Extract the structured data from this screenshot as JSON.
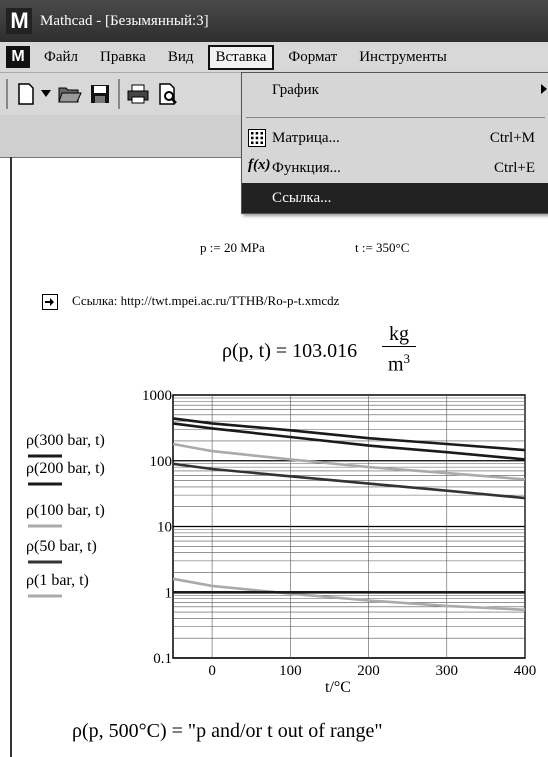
{
  "window": {
    "title": "Mathcad - [Безымянный:3]"
  },
  "menubar": {
    "items": [
      "Файл",
      "Правка",
      "Вид",
      "Вставка",
      "Формат",
      "Инструменты"
    ]
  },
  "icons": [
    "mathcad-logo-icon",
    "new-document-icon",
    "dropdown-arrow-icon",
    "open-folder-icon",
    "save-icon",
    "print-icon",
    "print-preview-icon",
    "matrix-icon",
    "function-icon",
    "hyperlink-icon",
    "submenu-arrow-icon"
  ],
  "insert_menu": {
    "graph": "График",
    "matrix": "Матрица...",
    "matrix_shortcut": "Ctrl+M",
    "function": "Функция...",
    "function_shortcut": "Ctrl+E",
    "reference": "Ссылка..."
  },
  "worksheet": {
    "def_p": "p := 20 MPa",
    "def_t": "t := 350°C",
    "reference_label": "Ссылка: http://twt.mpei.ac.ru/TTHB/Ro-p-t.xmcdz",
    "density_lhs": "ρ(p, t) = 103.016",
    "density_unit_num": "kg",
    "density_unit_den": "m",
    "density_unit_exp": "3",
    "out_of_range": "ρ(p, 500°C) = \"p and/or t out of range\""
  },
  "chart_data": {
    "type": "line",
    "xlabel": "t/°C",
    "ylabel": "",
    "x_scale": "linear",
    "y_scale": "log",
    "xlim": [
      -50,
      400
    ],
    "ylim": [
      0.1,
      1000
    ],
    "x_ticks": [
      "0",
      "100",
      "200",
      "300",
      "400"
    ],
    "y_ticks": [
      "0.1",
      "1",
      "10",
      "100",
      "1000"
    ],
    "grid": true,
    "legend_placement": "left",
    "x": [
      -50,
      0,
      100,
      200,
      300,
      400
    ],
    "series": [
      {
        "name": "ρ(300 bar, t)",
        "color": "#1a1a1a",
        "values": [
          440,
          370,
          290,
          220,
          180,
          145
        ]
      },
      {
        "name": "ρ(200 bar, t)",
        "color": "#1a1a1a",
        "values": [
          370,
          310,
          230,
          170,
          135,
          105
        ]
      },
      {
        "name": "ρ(100 bar, t)",
        "color": "#aaaaaa",
        "values": [
          180,
          140,
          105,
          80,
          65,
          52
        ]
      },
      {
        "name": "ρ(50 bar, t)",
        "color": "#333333",
        "values": [
          90,
          75,
          58,
          45,
          35,
          27
        ]
      },
      {
        "name": "ρ(1 bar, t)",
        "color": "#aaaaaa",
        "values": [
          1.6,
          1.25,
          0.95,
          0.75,
          0.62,
          0.54
        ]
      },
      {
        "name": "",
        "color": "#1a1a1a",
        "values": [
          1.0,
          1.0,
          1.0,
          1.0,
          1.0,
          1.0
        ]
      }
    ]
  }
}
